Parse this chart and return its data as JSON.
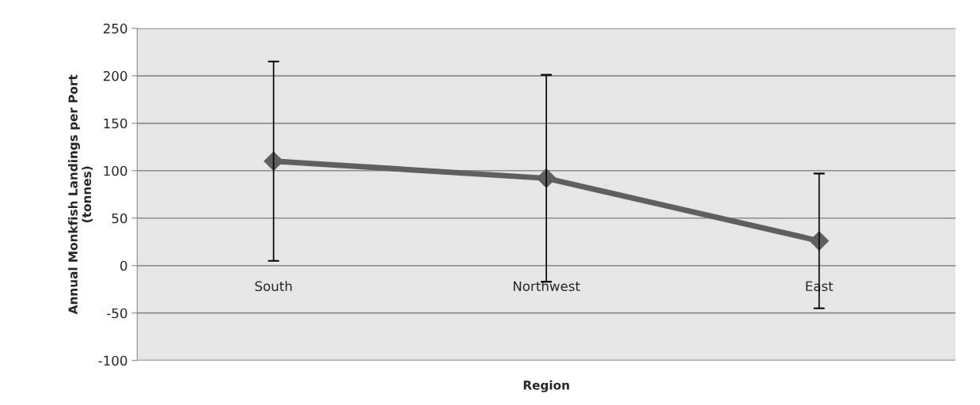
{
  "chart_data": {
    "type": "line",
    "xlabel": "Region",
    "ylabel": "Annual Monkfish Landings per Port\n(tonnes)",
    "categories": [
      "South",
      "Northwest",
      "East"
    ],
    "series": [
      {
        "color": "#5f5f5f",
        "values": [
          110,
          92,
          26
        ],
        "errors": [
          [
            5,
            215
          ],
          [
            -17,
            201
          ],
          [
            -45,
            97
          ]
        ]
      }
    ],
    "ylim": [
      -100,
      250
    ],
    "yticks": [
      -100,
      -50,
      0,
      50,
      100,
      150,
      200,
      250
    ],
    "grid": "y",
    "marker": "diamond",
    "line_style": "solid"
  }
}
